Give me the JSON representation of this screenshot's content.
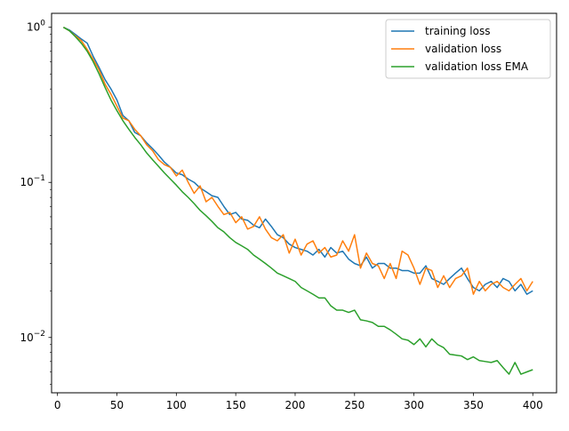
{
  "chart_data": {
    "type": "line",
    "yscale": "log",
    "xlim": [
      -5,
      420
    ],
    "ylim": [
      0.0044,
      1.23
    ],
    "grid": false,
    "legend_position": "top-right",
    "x_ticks": [
      0,
      50,
      100,
      150,
      200,
      250,
      300,
      350,
      400
    ],
    "x_tick_labels": [
      "0",
      "50",
      "100",
      "150",
      "200",
      "250",
      "300",
      "350",
      "400"
    ],
    "y_ticks": [
      {
        "value": 1,
        "base": "10",
        "exp": "0"
      },
      {
        "value": 0.1,
        "base": "10",
        "exp": "−1"
      },
      {
        "value": 0.01,
        "base": "10",
        "exp": "−2"
      }
    ],
    "x": [
      5,
      10,
      15,
      20,
      25,
      30,
      35,
      40,
      45,
      50,
      55,
      60,
      65,
      70,
      75,
      80,
      85,
      90,
      95,
      100,
      105,
      110,
      115,
      120,
      125,
      130,
      135,
      140,
      145,
      150,
      155,
      160,
      165,
      170,
      175,
      180,
      185,
      190,
      195,
      200,
      205,
      210,
      215,
      220,
      225,
      230,
      235,
      240,
      245,
      250,
      255,
      260,
      265,
      270,
      275,
      280,
      285,
      290,
      295,
      300,
      305,
      310,
      315,
      320,
      325,
      330,
      335,
      340,
      345,
      350,
      355,
      360,
      365,
      370,
      375,
      380,
      385,
      390,
      395,
      400
    ],
    "series": [
      {
        "name": "training loss",
        "color": "#1f77b4",
        "values": [
          1.0,
          0.96,
          0.9,
          0.84,
          0.79,
          0.65,
          0.55,
          0.46,
          0.4,
          0.34,
          0.27,
          0.25,
          0.21,
          0.2,
          0.18,
          0.165,
          0.15,
          0.135,
          0.125,
          0.115,
          0.112,
          0.105,
          0.1,
          0.092,
          0.087,
          0.082,
          0.08,
          0.07,
          0.062,
          0.064,
          0.058,
          0.057,
          0.053,
          0.051,
          0.058,
          0.052,
          0.046,
          0.044,
          0.04,
          0.038,
          0.037,
          0.036,
          0.034,
          0.037,
          0.033,
          0.038,
          0.035,
          0.036,
          0.032,
          0.03,
          0.029,
          0.033,
          0.028,
          0.03,
          0.03,
          0.028,
          0.028,
          0.027,
          0.027,
          0.026,
          0.026,
          0.029,
          0.024,
          0.023,
          0.022,
          0.024,
          0.026,
          0.028,
          0.024,
          0.021,
          0.02,
          0.022,
          0.023,
          0.021,
          0.024,
          0.023,
          0.02,
          0.022,
          0.019,
          0.02
        ]
      },
      {
        "name": "validation loss",
        "color": "#ff7f0e",
        "values": [
          1.0,
          0.95,
          0.88,
          0.82,
          0.72,
          0.62,
          0.53,
          0.43,
          0.37,
          0.31,
          0.26,
          0.25,
          0.22,
          0.2,
          0.175,
          0.16,
          0.14,
          0.13,
          0.125,
          0.11,
          0.12,
          0.1,
          0.085,
          0.095,
          0.075,
          0.08,
          0.07,
          0.062,
          0.064,
          0.055,
          0.06,
          0.05,
          0.052,
          0.06,
          0.05,
          0.044,
          0.042,
          0.046,
          0.035,
          0.043,
          0.034,
          0.04,
          0.042,
          0.035,
          0.038,
          0.033,
          0.034,
          0.042,
          0.036,
          0.046,
          0.028,
          0.035,
          0.03,
          0.029,
          0.024,
          0.03,
          0.024,
          0.036,
          0.034,
          0.028,
          0.022,
          0.028,
          0.027,
          0.021,
          0.025,
          0.021,
          0.024,
          0.025,
          0.028,
          0.019,
          0.023,
          0.02,
          0.022,
          0.023,
          0.021,
          0.02,
          0.022,
          0.024,
          0.02,
          0.023
        ]
      },
      {
        "name": "validation loss EMA",
        "color": "#2ca02c",
        "values": [
          1.0,
          0.95,
          0.87,
          0.79,
          0.7,
          0.6,
          0.5,
          0.41,
          0.34,
          0.29,
          0.25,
          0.22,
          0.195,
          0.175,
          0.155,
          0.14,
          0.127,
          0.115,
          0.105,
          0.096,
          0.087,
          0.08,
          0.073,
          0.066,
          0.061,
          0.056,
          0.051,
          0.048,
          0.044,
          0.041,
          0.039,
          0.037,
          0.034,
          0.032,
          0.03,
          0.028,
          0.026,
          0.025,
          0.024,
          0.023,
          0.021,
          0.02,
          0.019,
          0.018,
          0.018,
          0.016,
          0.015,
          0.015,
          0.0145,
          0.015,
          0.013,
          0.0128,
          0.0125,
          0.0118,
          0.0118,
          0.0112,
          0.0105,
          0.0098,
          0.0096,
          0.009,
          0.0098,
          0.0087,
          0.0098,
          0.009,
          0.0086,
          0.0078,
          0.0077,
          0.0076,
          0.0072,
          0.0075,
          0.0071,
          0.007,
          0.0069,
          0.0071,
          0.0064,
          0.0058,
          0.0069,
          0.0058,
          0.006,
          0.0062
        ]
      }
    ]
  }
}
